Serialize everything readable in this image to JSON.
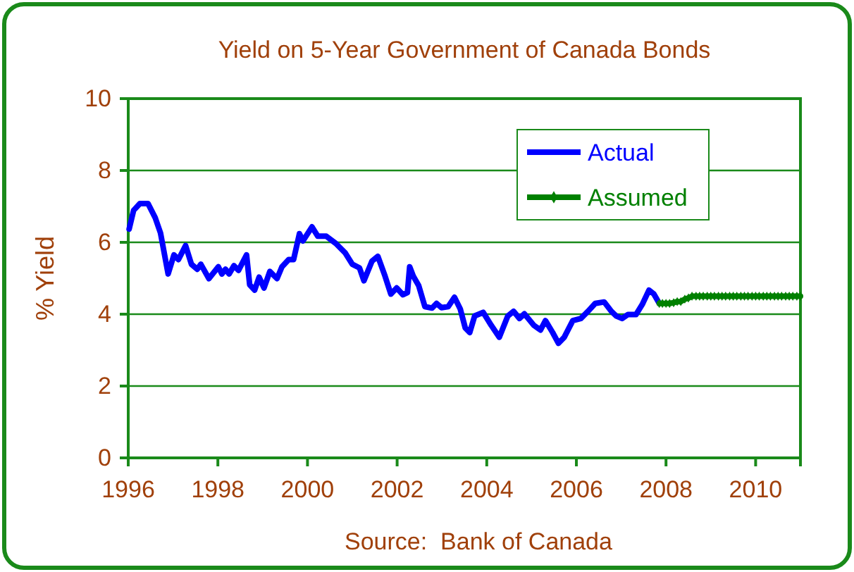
{
  "chart_data": {
    "type": "line",
    "title": "Yield on 5-Year Government of Canada Bonds",
    "ylabel": "% Yield",
    "annotations": [
      "Source:  Bank of Canada"
    ],
    "xlim": [
      1996,
      2011
    ],
    "xticks": [
      1996,
      1998,
      2000,
      2002,
      2004,
      2006,
      2008,
      2010
    ],
    "ylim": [
      0,
      10
    ],
    "yticks": [
      0,
      2,
      4,
      6,
      8,
      10
    ],
    "grid": "y",
    "legend": "top right",
    "line_style": "solid",
    "series": [
      {
        "name": "Actual",
        "color": "#0000ff",
        "marker": "none",
        "x": [
          1996.02,
          1996.12,
          1996.26,
          1996.44,
          1996.6,
          1996.72,
          1996.89,
          1997.02,
          1997.12,
          1997.28,
          1997.41,
          1997.54,
          1997.62,
          1997.8,
          1998.01,
          1998.09,
          1998.17,
          1998.25,
          1998.36,
          1998.46,
          1998.64,
          1998.71,
          1998.82,
          1998.92,
          1999.03,
          1999.16,
          1999.32,
          1999.43,
          1999.58,
          1999.69,
          1999.82,
          1999.9,
          2000.1,
          2000.23,
          2000.42,
          2000.63,
          2000.84,
          2001.0,
          2001.16,
          2001.26,
          2001.44,
          2001.57,
          2001.73,
          2001.86,
          2001.99,
          2002.13,
          2002.23,
          2002.28,
          2002.36,
          2002.48,
          2002.62,
          2002.78,
          2002.88,
          2002.99,
          2003.14,
          2003.28,
          2003.41,
          2003.52,
          2003.62,
          2003.73,
          2003.92,
          2004.1,
          2004.28,
          2004.47,
          2004.6,
          2004.73,
          2004.84,
          2005.05,
          2005.2,
          2005.31,
          2005.47,
          2005.6,
          2005.73,
          2005.92,
          2006.1,
          2006.26,
          2006.42,
          2006.62,
          2006.78,
          2006.89,
          2007.02,
          2007.15,
          2007.33,
          2007.47,
          2007.62,
          2007.73,
          2007.85
        ],
        "values": [
          6.37,
          6.89,
          7.08,
          7.08,
          6.69,
          6.26,
          5.12,
          5.65,
          5.52,
          5.91,
          5.39,
          5.25,
          5.39,
          4.99,
          5.32,
          5.12,
          5.25,
          5.12,
          5.35,
          5.22,
          5.65,
          4.82,
          4.67,
          5.03,
          4.73,
          5.19,
          4.99,
          5.32,
          5.52,
          5.52,
          6.24,
          6.04,
          6.43,
          6.17,
          6.17,
          5.97,
          5.71,
          5.39,
          5.29,
          4.93,
          5.48,
          5.61,
          5.06,
          4.56,
          4.73,
          4.54,
          4.6,
          5.32,
          5.06,
          4.8,
          4.21,
          4.17,
          4.3,
          4.18,
          4.21,
          4.47,
          4.14,
          3.62,
          3.49,
          3.95,
          4.05,
          3.69,
          3.36,
          3.95,
          4.08,
          3.88,
          4.01,
          3.69,
          3.56,
          3.82,
          3.49,
          3.19,
          3.36,
          3.82,
          3.88,
          4.08,
          4.3,
          4.34,
          4.08,
          3.95,
          3.88,
          3.99,
          3.99,
          4.27,
          4.67,
          4.56,
          4.3
        ]
      },
      {
        "name": "Assumed",
        "color": "#008000",
        "marker": "diamond",
        "x": [
          2007.85,
          2007.92,
          2008,
          2008.08,
          2008.17,
          2008.25,
          2008.33,
          2008.42,
          2008.5,
          2008.58,
          2008.67,
          2008.75,
          2008.83,
          2008.92,
          2009,
          2009.08,
          2009.17,
          2009.25,
          2009.33,
          2009.42,
          2009.5,
          2009.58,
          2009.67,
          2009.75,
          2009.83,
          2009.92,
          2010,
          2010.08,
          2010.17,
          2010.25,
          2010.33,
          2010.42,
          2010.5,
          2010.58,
          2010.67,
          2010.75,
          2010.83,
          2010.92,
          2011
        ],
        "values": [
          4.3,
          4.3,
          4.3,
          4.3,
          4.32,
          4.35,
          4.35,
          4.42,
          4.45,
          4.5,
          4.5,
          4.5,
          4.5,
          4.5,
          4.5,
          4.5,
          4.5,
          4.5,
          4.5,
          4.5,
          4.5,
          4.5,
          4.5,
          4.5,
          4.5,
          4.5,
          4.5,
          4.5,
          4.5,
          4.5,
          4.5,
          4.5,
          4.5,
          4.5,
          4.5,
          4.5,
          4.5,
          4.5,
          4.5
        ]
      }
    ]
  }
}
